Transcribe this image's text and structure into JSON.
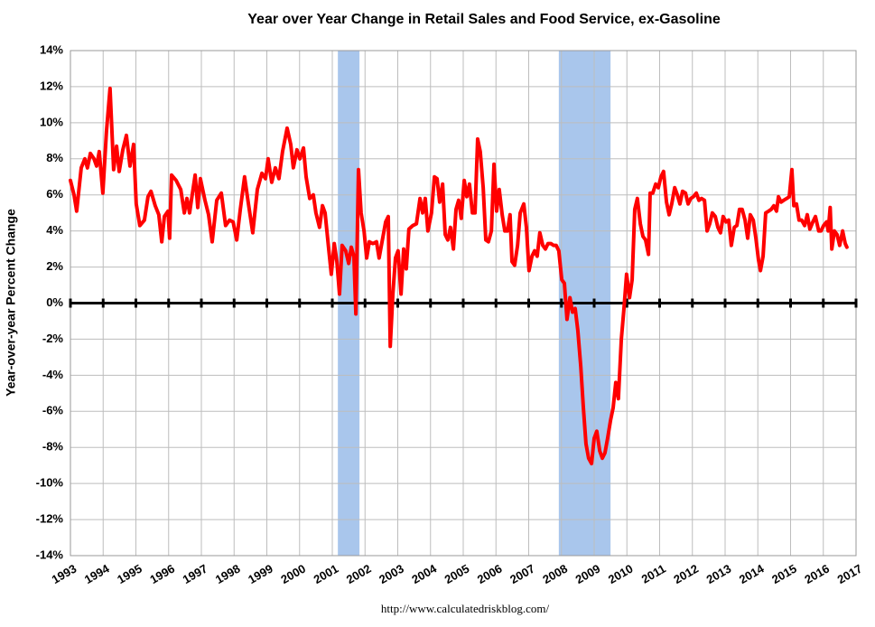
{
  "chart_data": {
    "type": "line",
    "title": "Year over Year Change in Retail Sales and Food Service, ex-Gasoline",
    "y_label": "Year-over-year Percent Change",
    "source": "http://www.calculatedriskblog.com/",
    "color": "#ff0000",
    "recession_color": "#a9c6ec",
    "grid": true,
    "recessions": [
      [
        2001.17,
        2001.83
      ],
      [
        2007.92,
        2009.5
      ]
    ],
    "xlim": [
      1993,
      2017
    ],
    "xticks": [
      1993,
      1994,
      1995,
      1996,
      1997,
      1998,
      1999,
      2000,
      2001,
      2002,
      2003,
      2004,
      2005,
      2006,
      2007,
      2008,
      2009,
      2010,
      2011,
      2012,
      2013,
      2014,
      2015,
      2016,
      2017
    ],
    "ylim": [
      -14,
      14
    ],
    "yticks": [
      {
        "value": -14,
        "label": "-14%"
      },
      {
        "value": -12,
        "label": "-12%"
      },
      {
        "value": -10,
        "label": "-10%"
      },
      {
        "value": -8,
        "label": "-8%"
      },
      {
        "value": -6,
        "label": "-6%"
      },
      {
        "value": -4,
        "label": "-4%"
      },
      {
        "value": -2,
        "label": "-2%"
      },
      {
        "value": 0,
        "label": "0%"
      },
      {
        "value": 2,
        "label": "2%"
      },
      {
        "value": 4,
        "label": "4%"
      },
      {
        "value": 6,
        "label": "6%"
      },
      {
        "value": 8,
        "label": "8%"
      },
      {
        "value": 10,
        "label": "10%"
      },
      {
        "value": 12,
        "label": "12%"
      },
      {
        "value": 14,
        "label": "14%"
      }
    ],
    "x": [
      1993.0,
      1993.11,
      1993.19,
      1993.33,
      1993.44,
      1993.52,
      1993.61,
      1993.72,
      1993.8,
      1993.88,
      1993.99,
      1994.1,
      1994.21,
      1994.32,
      1994.41,
      1994.49,
      1994.6,
      1994.71,
      1994.82,
      1994.93,
      1995.01,
      1995.12,
      1995.26,
      1995.37,
      1995.46,
      1995.59,
      1995.7,
      1995.79,
      1995.87,
      1995.98,
      1996.03,
      1996.09,
      1996.23,
      1996.37,
      1996.48,
      1996.56,
      1996.64,
      1996.72,
      1996.81,
      1996.89,
      1996.97,
      1997.11,
      1997.22,
      1997.33,
      1997.47,
      1997.61,
      1997.74,
      1997.86,
      1997.97,
      1998.08,
      1998.19,
      1998.32,
      1998.43,
      1998.57,
      1998.71,
      1998.85,
      1998.96,
      1999.04,
      1999.15,
      1999.26,
      1999.37,
      1999.48,
      1999.62,
      1999.73,
      1999.81,
      1999.92,
      2000.01,
      2000.12,
      2000.2,
      2000.31,
      2000.42,
      2000.5,
      2000.61,
      2000.7,
      2000.78,
      2000.89,
      2000.97,
      2001.06,
      2001.14,
      2001.22,
      2001.3,
      2001.41,
      2001.5,
      2001.58,
      2001.66,
      2001.72,
      2001.8,
      2001.88,
      2001.97,
      2002.05,
      2002.13,
      2002.24,
      2002.35,
      2002.43,
      2002.54,
      2002.63,
      2002.71,
      2002.77,
      2002.85,
      2002.93,
      2003.01,
      2003.1,
      2003.18,
      2003.26,
      2003.34,
      2003.46,
      2003.57,
      2003.68,
      2003.76,
      2003.84,
      2003.92,
      2004.03,
      2004.12,
      2004.2,
      2004.28,
      2004.37,
      2004.45,
      2004.53,
      2004.61,
      2004.7,
      2004.78,
      2004.86,
      2004.94,
      2005.03,
      2005.11,
      2005.19,
      2005.28,
      2005.36,
      2005.44,
      2005.52,
      2005.61,
      2005.69,
      2005.77,
      2005.86,
      2005.94,
      2006.02,
      2006.1,
      2006.19,
      2006.27,
      2006.35,
      2006.43,
      2006.49,
      2006.57,
      2006.66,
      2006.74,
      2006.85,
      2006.93,
      2007.01,
      2007.1,
      2007.18,
      2007.26,
      2007.34,
      2007.43,
      2007.51,
      2007.59,
      2007.68,
      2007.76,
      2007.84,
      2007.92,
      2008.01,
      2008.09,
      2008.17,
      2008.26,
      2008.34,
      2008.42,
      2008.5,
      2008.59,
      2008.67,
      2008.75,
      2008.83,
      2008.92,
      2009.0,
      2009.08,
      2009.17,
      2009.25,
      2009.33,
      2009.41,
      2009.5,
      2009.58,
      2009.66,
      2009.74,
      2009.83,
      2009.91,
      2009.99,
      2010.08,
      2010.16,
      2010.24,
      2010.32,
      2010.41,
      2010.49,
      2010.57,
      2010.66,
      2010.71,
      2010.79,
      2010.88,
      2010.96,
      2011.04,
      2011.12,
      2011.21,
      2011.29,
      2011.37,
      2011.46,
      2011.54,
      2011.62,
      2011.7,
      2011.79,
      2011.87,
      2011.95,
      2012.03,
      2012.12,
      2012.2,
      2012.28,
      2012.37,
      2012.45,
      2012.53,
      2012.61,
      2012.7,
      2012.78,
      2012.86,
      2012.94,
      2013.03,
      2013.11,
      2013.19,
      2013.28,
      2013.36,
      2013.44,
      2013.52,
      2013.61,
      2013.69,
      2013.77,
      2013.86,
      2013.94,
      2014.02,
      2014.08,
      2014.16,
      2014.24,
      2014.33,
      2014.41,
      2014.49,
      2014.57,
      2014.63,
      2014.71,
      2014.79,
      2014.88,
      2014.96,
      2015.04,
      2015.1,
      2015.18,
      2015.26,
      2015.34,
      2015.43,
      2015.51,
      2015.59,
      2015.68,
      2015.76,
      2015.86,
      2015.93,
      2016.01,
      2016.1,
      2016.15,
      2016.21,
      2016.26,
      2016.34,
      2016.42,
      2016.5,
      2016.59,
      2016.67,
      2016.72
    ],
    "values": [
      6.8,
      6.0,
      5.1,
      7.5,
      8.0,
      7.5,
      8.3,
      8.0,
      7.6,
      8.4,
      6.1,
      9.5,
      11.9,
      7.4,
      8.7,
      7.3,
      8.5,
      9.3,
      7.6,
      8.8,
      5.5,
      4.3,
      4.6,
      5.9,
      6.2,
      5.4,
      4.9,
      3.4,
      4.8,
      5.1,
      3.6,
      7.1,
      6.8,
      6.3,
      5.0,
      5.8,
      5.0,
      6.0,
      7.1,
      5.3,
      6.9,
      5.7,
      4.9,
      3.4,
      5.7,
      6.1,
      4.3,
      4.6,
      4.5,
      3.5,
      5.2,
      7.0,
      5.6,
      3.9,
      6.3,
      7.2,
      6.9,
      8.0,
      6.7,
      7.5,
      6.9,
      8.4,
      9.7,
      8.8,
      7.5,
      8.5,
      8.0,
      8.6,
      7.0,
      5.8,
      6.0,
      5.0,
      4.2,
      5.4,
      5.0,
      3.0,
      1.6,
      3.3,
      2.3,
      0.5,
      3.2,
      2.9,
      2.2,
      3.1,
      2.6,
      -0.6,
      7.4,
      5.0,
      4.0,
      2.5,
      3.4,
      3.3,
      3.4,
      2.5,
      3.6,
      4.5,
      4.8,
      -2.4,
      0.5,
      2.5,
      2.9,
      0.5,
      3.0,
      1.9,
      4.1,
      4.3,
      4.4,
      5.8,
      5.0,
      5.8,
      4.0,
      5.0,
      7.0,
      6.9,
      5.6,
      6.6,
      3.8,
      3.5,
      4.2,
      3.0,
      5.2,
      5.7,
      4.7,
      6.8,
      5.9,
      6.6,
      5.0,
      5.0,
      9.1,
      8.4,
      6.4,
      3.5,
      3.4,
      4.0,
      7.7,
      5.1,
      6.3,
      4.9,
      4.0,
      4.0,
      4.9,
      2.3,
      2.1,
      3.2,
      5.0,
      5.5,
      4.2,
      1.8,
      2.6,
      2.9,
      2.6,
      3.9,
      3.2,
      3.0,
      3.3,
      3.3,
      3.2,
      3.2,
      2.9,
      1.3,
      1.1,
      -0.9,
      0.3,
      -0.5,
      -0.3,
      -1.5,
      -3.5,
      -5.8,
      -7.8,
      -8.6,
      -8.9,
      -7.5,
      -7.1,
      -8.2,
      -8.6,
      -8.3,
      -7.5,
      -6.5,
      -5.8,
      -4.4,
      -5.3,
      -2.0,
      -0.3,
      1.6,
      0.3,
      1.3,
      5.2,
      5.8,
      4.4,
      3.7,
      3.5,
      2.7,
      6.1,
      6.1,
      6.6,
      6.4,
      7.0,
      7.3,
      5.6,
      4.9,
      5.5,
      6.4,
      6.0,
      5.5,
      6.2,
      6.1,
      5.5,
      5.8,
      5.9,
      6.1,
      5.7,
      5.8,
      5.7,
      4.0,
      4.4,
      5.0,
      4.8,
      4.2,
      3.9,
      4.8,
      4.5,
      4.6,
      3.2,
      4.2,
      4.3,
      5.2,
      5.2,
      4.6,
      3.6,
      4.9,
      4.6,
      3.6,
      2.4,
      1.8,
      2.6,
      5.0,
      5.1,
      5.2,
      5.4,
      5.1,
      5.9,
      5.6,
      5.7,
      5.8,
      5.9,
      7.4,
      5.4,
      5.5,
      4.6,
      4.6,
      4.3,
      4.9,
      4.1,
      4.5,
      4.8,
      4.0,
      4.0,
      4.3,
      4.5,
      4.0,
      5.3,
      3.0,
      4.0,
      3.8,
      3.2,
      4.0,
      3.3,
      3.1
    ]
  }
}
